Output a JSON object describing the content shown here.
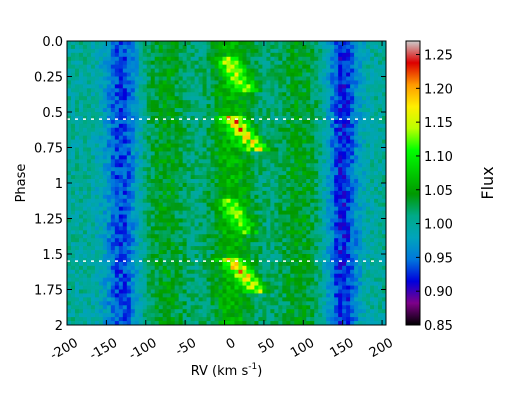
{
  "chart_data": {
    "type": "heatmap",
    "title": "",
    "xlabel": "RV (km s",
    "xlabel_sup": "-1",
    "xlabel_close": ")",
    "ylabel": "Phase",
    "xlim": [
      -200,
      205
    ],
    "ylim": [
      0,
      2
    ],
    "y_inverted": true,
    "x_ticks": [
      -200,
      -150,
      -100,
      -50,
      0,
      50,
      100,
      150,
      200
    ],
    "x_tick_labels": [
      "-200",
      "-150",
      "-100",
      "-50",
      "0",
      "50",
      "100",
      "150",
      "200"
    ],
    "y_ticks": [
      0.0,
      0.25,
      0.5,
      0.75,
      1.0,
      1.25,
      1.5,
      1.75,
      2.0
    ],
    "y_tick_labels": [
      "0.0",
      "0.25",
      "0.5",
      "0.75",
      "1",
      "1.25",
      "1.5",
      "1.75",
      "2"
    ],
    "colorbar": {
      "label": "Flux",
      "range": [
        0.85,
        1.27
      ],
      "ticks": [
        0.85,
        0.9,
        0.95,
        1.0,
        1.05,
        1.1,
        1.15,
        1.2,
        1.25
      ],
      "tick_labels": [
        "0.85",
        "0.90",
        "0.95",
        "1.00",
        "1.05",
        "1.10",
        "1.15",
        "1.20",
        "1.25"
      ],
      "colormap": "nipy_spectral",
      "colormap_stops": [
        "#000000",
        "#7e0089",
        "#0000dd",
        "#0077dd",
        "#00a4bb",
        "#00aa88",
        "#009900",
        "#00cc00",
        "#00ff00",
        "#bbff00",
        "#ffee00",
        "#ff9900",
        "#dd0000",
        "#cccccc"
      ]
    },
    "background_flux": 1.0,
    "absorption_bands": [
      {
        "rv_center": -130,
        "width": 22,
        "flux": 0.93
      },
      {
        "rv_center": 150,
        "width": 20,
        "flux": 0.92
      }
    ],
    "emission_bands": [
      {
        "rv_center": -75,
        "width": 30,
        "flux": 1.04
      },
      {
        "rv_center": 10,
        "width": 30,
        "flux": 1.06
      },
      {
        "rv_center": 95,
        "width": 30,
        "flux": 1.04
      }
    ],
    "emission_streaks": [
      {
        "phase_start": 0.1,
        "phase_end": 0.35,
        "rv_start": 0,
        "rv_end": 30,
        "flux": 1.11
      },
      {
        "phase_start": 0.52,
        "phase_end": 0.78,
        "rv_start": 5,
        "rv_end": 45,
        "flux": 1.17
      },
      {
        "phase_start": 1.1,
        "phase_end": 1.35,
        "rv_start": 0,
        "rv_end": 30,
        "flux": 1.09
      },
      {
        "phase_start": 1.52,
        "phase_end": 1.78,
        "rv_start": 5,
        "rv_end": 45,
        "flux": 1.16
      }
    ],
    "gap_lines_phase": [
      0.55,
      1.55
    ]
  }
}
